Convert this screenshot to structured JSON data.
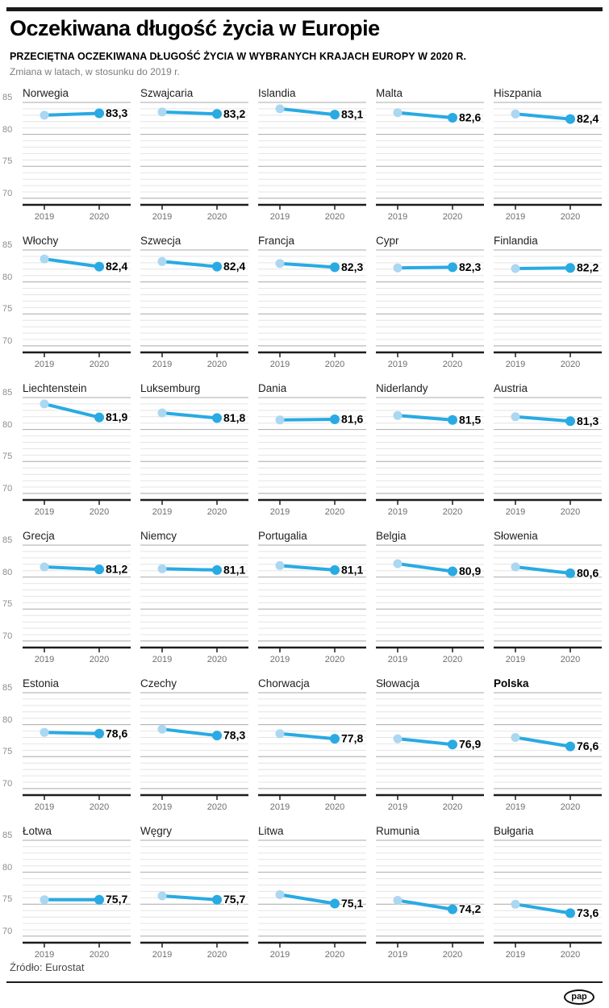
{
  "header": {
    "title": "Oczekiwana długość życia w Europie",
    "subtitle": "PRZECIĘTNA OCZEKIWANA DŁUGOŚĆ ŻYCIA W WYBRANYCH KRAJACH EUROPY W 2020 R.",
    "note": "Zmiana w latach, w stosunku do 2019 r."
  },
  "footer": {
    "source": "Źródło: Eurostat",
    "logo_text": "pap"
  },
  "chart_data": {
    "type": "line",
    "layout": "small multiples grid, 5 columns x 6 rows, shared y axis labels on left column, legend off",
    "x": [
      "2019",
      "2020"
    ],
    "ylim": [
      70,
      85
    ],
    "yticks": [
      85,
      80,
      75,
      70
    ],
    "grid": "minor horizontal line every 1 year, darker line every 5 years, thick black x axis",
    "colors": {
      "line": "#29aae2",
      "dot_2020": "#29aae2",
      "dot_2019": "#abd7f1",
      "major_grid": "#a9a9a9",
      "minor_grid": "#e4e4e4",
      "axis": "#1c1c1c"
    },
    "value_note": "2020 value labeled on chart; 2019 value estimated from dot position",
    "series": [
      {
        "name": "Norwegia",
        "values": [
          83.0,
          83.3
        ],
        "value_label": "83,3",
        "highlight": false
      },
      {
        "name": "Szwajcaria",
        "values": [
          83.5,
          83.2
        ],
        "value_label": "83,2",
        "highlight": false
      },
      {
        "name": "Islandia",
        "values": [
          84.0,
          83.1
        ],
        "value_label": "83,1",
        "highlight": false
      },
      {
        "name": "Malta",
        "values": [
          83.4,
          82.6
        ],
        "value_label": "82,6",
        "highlight": false
      },
      {
        "name": "Hiszpania",
        "values": [
          83.2,
          82.4
        ],
        "value_label": "82,4",
        "highlight": false
      },
      {
        "name": "Włochy",
        "values": [
          83.6,
          82.4
        ],
        "value_label": "82,4",
        "highlight": false
      },
      {
        "name": "Szwecja",
        "values": [
          83.2,
          82.4
        ],
        "value_label": "82,4",
        "highlight": false
      },
      {
        "name": "Francja",
        "values": [
          82.9,
          82.3
        ],
        "value_label": "82,3",
        "highlight": false
      },
      {
        "name": "Cypr",
        "values": [
          82.2,
          82.3
        ],
        "value_label": "82,3",
        "highlight": false
      },
      {
        "name": "Finlandia",
        "values": [
          82.1,
          82.2
        ],
        "value_label": "82,2",
        "highlight": false
      },
      {
        "name": "Liechtenstein",
        "values": [
          84.0,
          81.9
        ],
        "value_label": "81,9",
        "highlight": false
      },
      {
        "name": "Luksemburg",
        "values": [
          82.6,
          81.8
        ],
        "value_label": "81,8",
        "highlight": false
      },
      {
        "name": "Dania",
        "values": [
          81.5,
          81.6
        ],
        "value_label": "81,6",
        "highlight": false
      },
      {
        "name": "Niderlandy",
        "values": [
          82.2,
          81.5
        ],
        "value_label": "81,5",
        "highlight": false
      },
      {
        "name": "Austria",
        "values": [
          82.0,
          81.3
        ],
        "value_label": "81,3",
        "highlight": false
      },
      {
        "name": "Grecja",
        "values": [
          81.6,
          81.2
        ],
        "value_label": "81,2",
        "highlight": false
      },
      {
        "name": "Niemcy",
        "values": [
          81.3,
          81.1
        ],
        "value_label": "81,1",
        "highlight": false
      },
      {
        "name": "Portugalia",
        "values": [
          81.8,
          81.1
        ],
        "value_label": "81,1",
        "highlight": false
      },
      {
        "name": "Belgia",
        "values": [
          82.1,
          80.9
        ],
        "value_label": "80,9",
        "highlight": false
      },
      {
        "name": "Słowenia",
        "values": [
          81.6,
          80.6
        ],
        "value_label": "80,6",
        "highlight": false
      },
      {
        "name": "Estonia",
        "values": [
          78.8,
          78.6
        ],
        "value_label": "78,6",
        "highlight": false
      },
      {
        "name": "Czechy",
        "values": [
          79.3,
          78.3
        ],
        "value_label": "78,3",
        "highlight": false
      },
      {
        "name": "Chorwacja",
        "values": [
          78.6,
          77.8
        ],
        "value_label": "77,8",
        "highlight": false
      },
      {
        "name": "Słowacja",
        "values": [
          77.8,
          76.9
        ],
        "value_label": "76,9",
        "highlight": false
      },
      {
        "name": "Polska",
        "values": [
          78.0,
          76.6
        ],
        "value_label": "76,6",
        "highlight": true
      },
      {
        "name": "Łotwa",
        "values": [
          75.7,
          75.7
        ],
        "value_label": "75,7",
        "highlight": false
      },
      {
        "name": "Węgry",
        "values": [
          76.3,
          75.7
        ],
        "value_label": "75,7",
        "highlight": false
      },
      {
        "name": "Litwa",
        "values": [
          76.5,
          75.1
        ],
        "value_label": "75,1",
        "highlight": false
      },
      {
        "name": "Rumunia",
        "values": [
          75.6,
          74.2
        ],
        "value_label": "74,2",
        "highlight": false
      },
      {
        "name": "Bułgaria",
        "values": [
          75.0,
          73.6
        ],
        "value_label": "73,6",
        "highlight": false
      }
    ]
  }
}
